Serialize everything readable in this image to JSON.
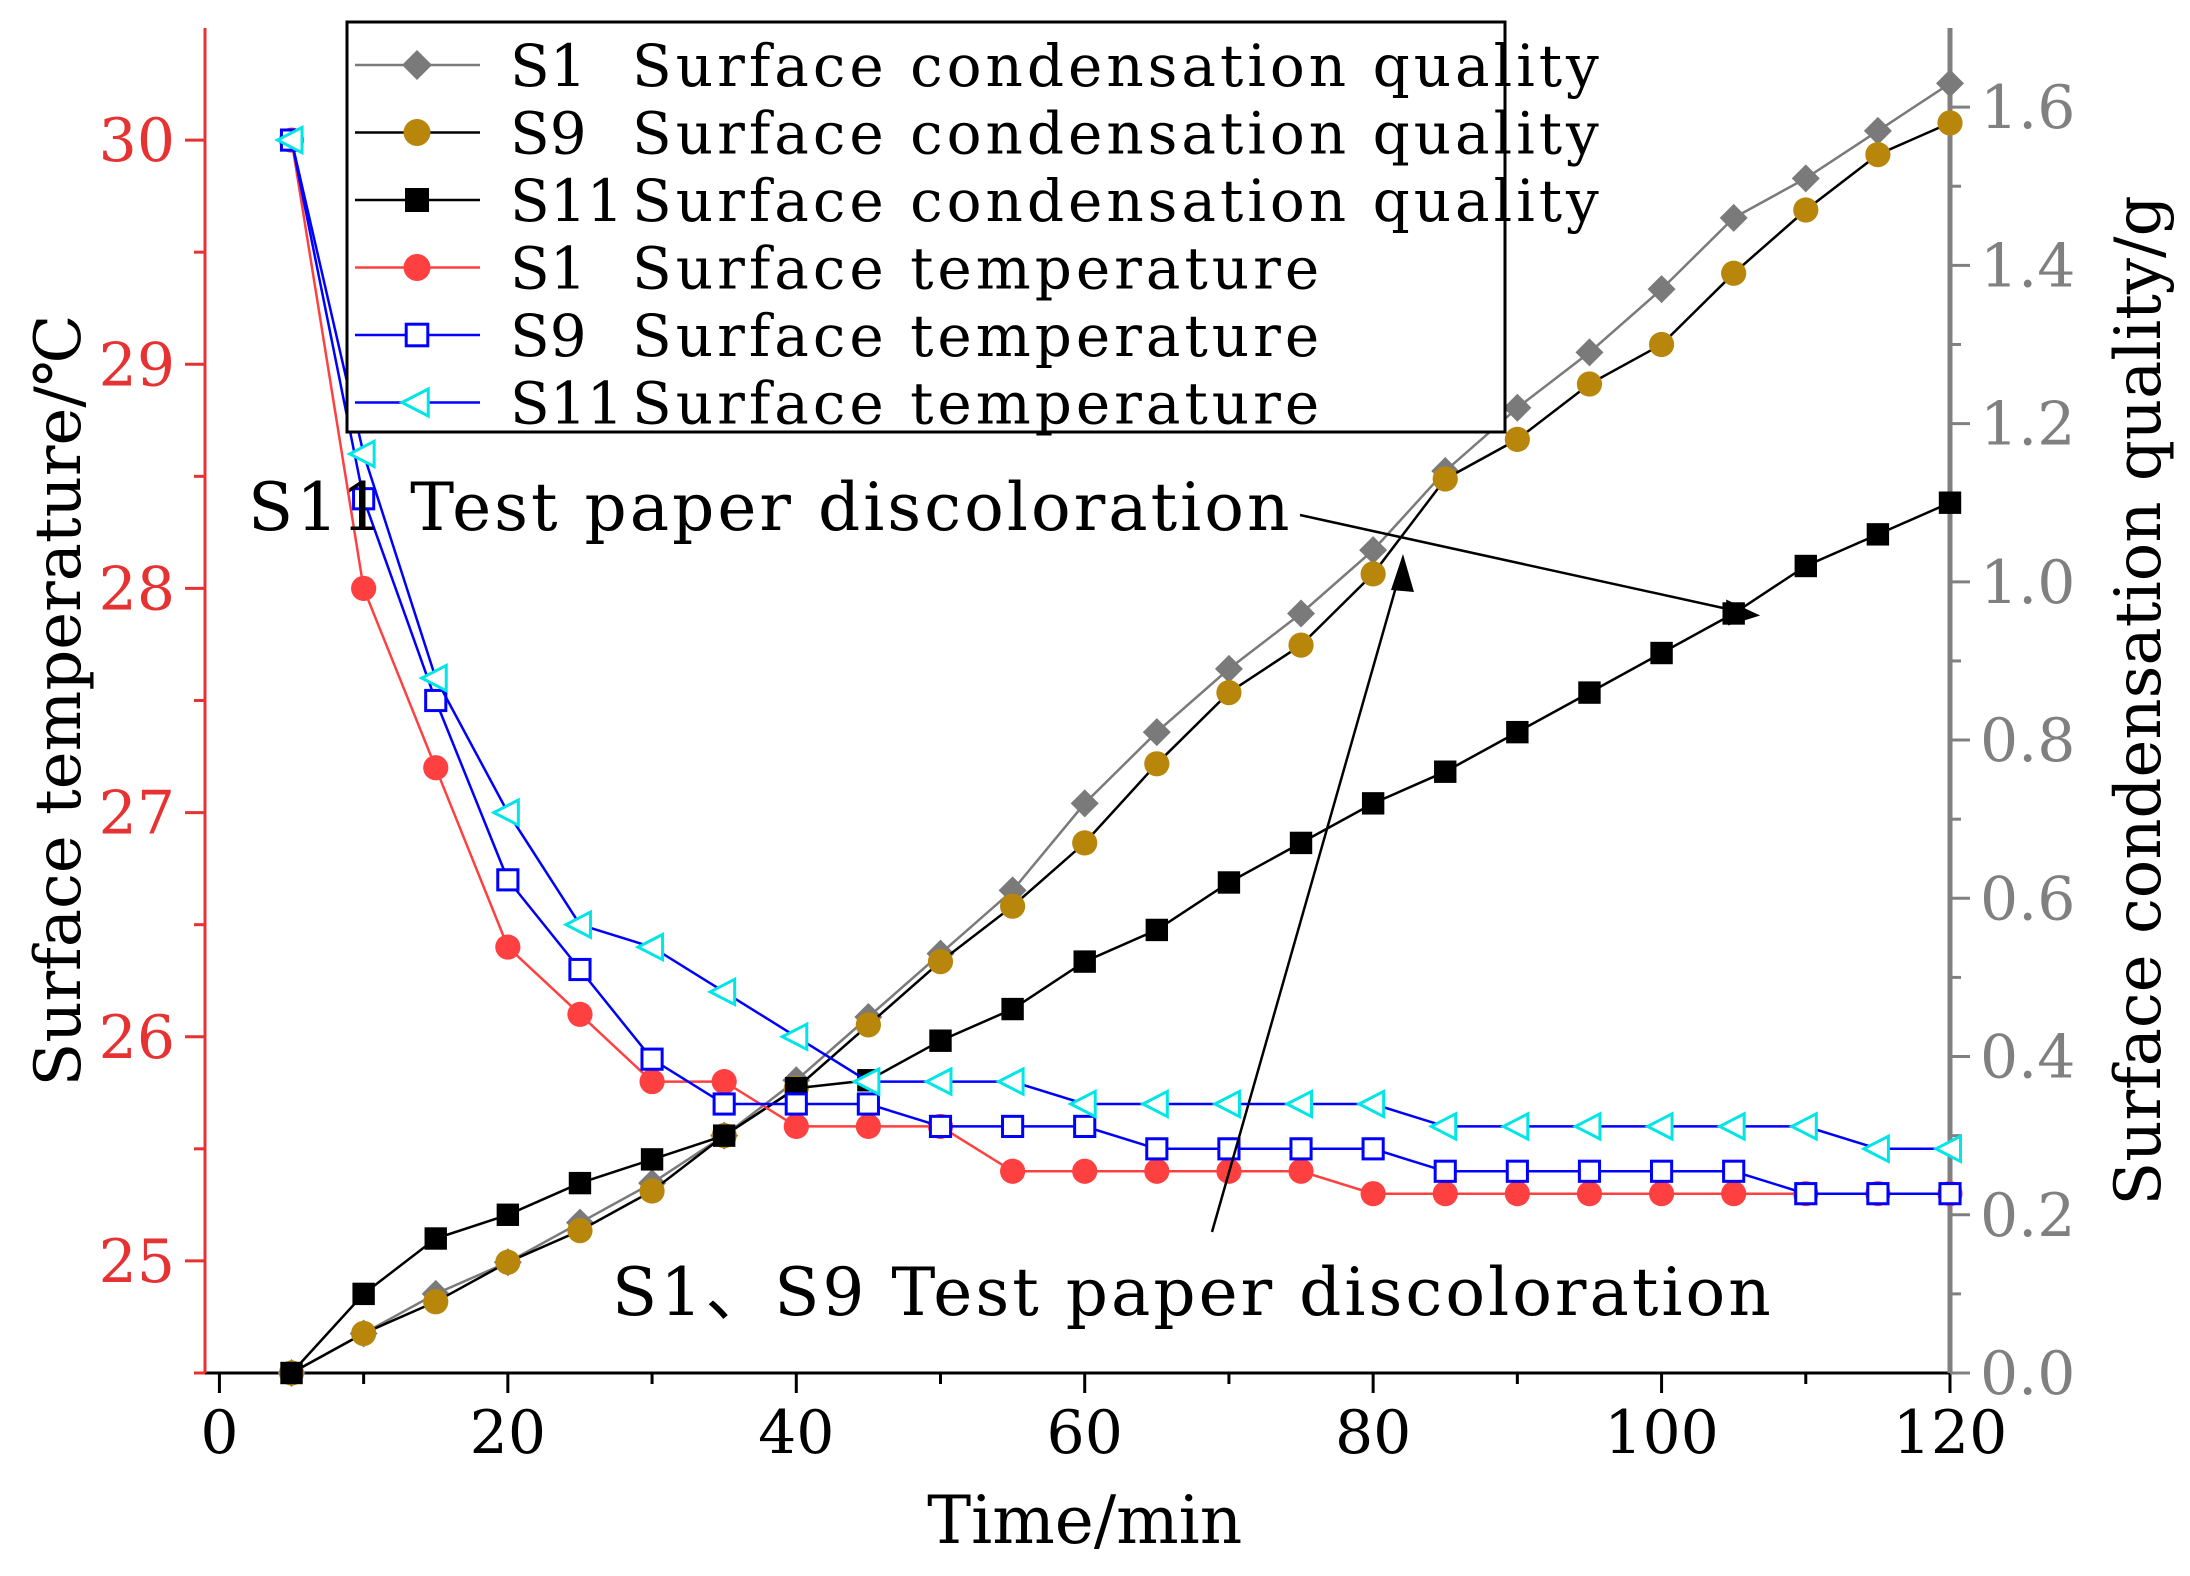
{
  "chart_data": {
    "type": "line",
    "x_axis": {
      "label": "Time/min",
      "range": [
        -1,
        120
      ],
      "ticks": [
        0,
        20,
        40,
        60,
        80,
        100,
        120
      ],
      "tick_labels": [
        "0",
        "20",
        "40",
        "60",
        "80",
        "100",
        "120"
      ],
      "minor_ticks": [
        10,
        30,
        50,
        70,
        90,
        110
      ]
    },
    "y_left": {
      "label": "Surface temperature/℃",
      "range": [
        24.5,
        30.5
      ],
      "ticks": [
        25,
        26,
        27,
        28,
        29,
        30
      ],
      "tick_labels": [
        "25",
        "26",
        "27",
        "28",
        "29",
        "30"
      ],
      "minor_ticks": [
        24.5,
        25.5,
        26.5,
        27.5,
        28.5,
        29.5
      ],
      "color": "#e63232"
    },
    "y_right": {
      "label": "Surface condensation quality/g",
      "range": [
        0.0,
        1.7
      ],
      "ticks": [
        0.0,
        0.2,
        0.4,
        0.6,
        0.8,
        1.0,
        1.2,
        1.4,
        1.6
      ],
      "tick_labels": [
        "0.0",
        "0.2",
        "0.4",
        "0.6",
        "0.8",
        "1.0",
        "1.2",
        "1.4",
        "1.6"
      ],
      "minor_ticks": [
        0.1,
        0.3,
        0.5,
        0.7,
        0.9,
        1.1,
        1.3,
        1.5
      ],
      "color": "#808080"
    },
    "x": [
      5,
      10,
      15,
      20,
      25,
      30,
      35,
      40,
      45,
      50,
      55,
      60,
      65,
      70,
      75,
      80,
      85,
      90,
      95,
      100,
      105,
      110,
      115,
      120
    ],
    "series": [
      {
        "name": "S1  Surface condensation quality",
        "axis": "right",
        "marker": "diamond",
        "marker_color": "#7a7a7a",
        "line_color": "#7a7a7a",
        "values": [
          0.0,
          0.05,
          0.1,
          0.14,
          0.19,
          0.24,
          0.3,
          0.37,
          0.45,
          0.53,
          0.61,
          0.72,
          0.81,
          0.89,
          0.96,
          1.04,
          1.14,
          1.22,
          1.29,
          1.37,
          1.46,
          1.51,
          1.57,
          1.63
        ]
      },
      {
        "name": "S9  Surface condensation quality",
        "axis": "right",
        "marker": "circle",
        "marker_color": "#b8860b",
        "line_color": "#000000",
        "values": [
          0.0,
          0.05,
          0.09,
          0.14,
          0.18,
          0.23,
          0.3,
          0.36,
          0.44,
          0.52,
          0.59,
          0.67,
          0.77,
          0.86,
          0.92,
          1.01,
          1.13,
          1.18,
          1.25,
          1.3,
          1.39,
          1.47,
          1.54,
          1.58
        ]
      },
      {
        "name": "S11 Surface condensation quality",
        "axis": "right",
        "marker": "square",
        "marker_color": "#000000",
        "line_color": "#000000",
        "values": [
          0.0,
          0.1,
          0.17,
          0.2,
          0.24,
          0.27,
          0.3,
          0.36,
          0.37,
          0.42,
          0.46,
          0.52,
          0.56,
          0.62,
          0.67,
          0.72,
          0.76,
          0.81,
          0.86,
          0.91,
          0.96,
          1.02,
          1.06,
          1.1
        ]
      },
      {
        "name": "S1  Surface temperature",
        "axis": "left",
        "marker": "filled-circle",
        "marker_color": "#ff4040",
        "line_color": "#ff4040",
        "values": [
          30.0,
          28.0,
          27.2,
          26.4,
          26.1,
          25.8,
          25.8,
          25.6,
          25.6,
          25.6,
          25.4,
          25.4,
          25.4,
          25.4,
          25.4,
          25.3,
          25.3,
          25.3,
          25.3,
          25.3,
          25.3,
          25.3,
          25.3,
          25.3
        ]
      },
      {
        "name": "S9  Surface temperature",
        "axis": "left",
        "marker": "open-square",
        "marker_color": "#0000ff",
        "line_color": "#0000ff",
        "values": [
          30.0,
          28.4,
          27.5,
          26.7,
          26.3,
          25.9,
          25.7,
          25.7,
          25.7,
          25.6,
          25.6,
          25.6,
          25.5,
          25.5,
          25.5,
          25.5,
          25.4,
          25.4,
          25.4,
          25.4,
          25.4,
          25.3,
          25.3,
          25.3
        ]
      },
      {
        "name": "S11 Surface temperature",
        "axis": "left",
        "marker": "open-left-triangle",
        "marker_color": "#00e5e5",
        "line_color": "#0000ff",
        "values": [
          30.0,
          28.6,
          27.6,
          27.0,
          26.5,
          26.4,
          26.2,
          26.0,
          25.8,
          25.8,
          25.8,
          25.7,
          25.7,
          25.7,
          25.7,
          25.7,
          25.6,
          25.6,
          25.6,
          25.6,
          25.6,
          25.6,
          25.5,
          25.5
        ]
      }
    ],
    "legend": {
      "placement": "top-center",
      "entries": [
        {
          "prefix": "S1",
          "text": "Surface condensation quality"
        },
        {
          "prefix": "S9",
          "text": "Surface condensation quality"
        },
        {
          "prefix": "S11",
          "text": "Surface condensation quality"
        },
        {
          "prefix": "S1",
          "text": "Surface temperature"
        },
        {
          "prefix": "S9",
          "text": "Surface temperature"
        },
        {
          "prefix": "S11",
          "text": "Surface temperature"
        }
      ]
    },
    "annotations": [
      {
        "text": "S11 Test paper discoloration",
        "points_to": {
          "x": 106,
          "axis": "right",
          "y": 0.96
        }
      },
      {
        "text": "S1、S9 Test paper discoloration",
        "points_to": {
          "x": 82,
          "axis": "right",
          "y": 1.02
        }
      }
    ]
  }
}
